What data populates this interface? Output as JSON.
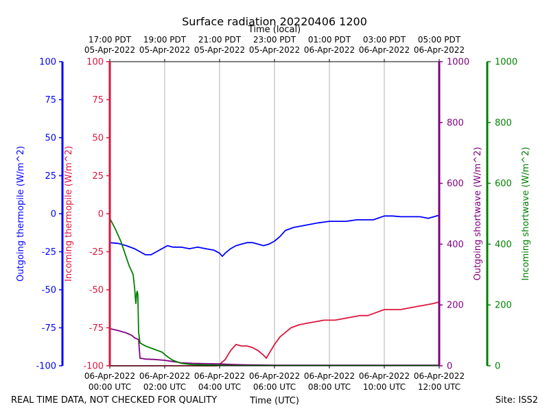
{
  "chart_data": {
    "type": "line",
    "title": "Surface radiation 20220406 1200",
    "top_axis_label": "Time (local)",
    "xlabel": "Time (UTC)",
    "footer_left": "REAL TIME DATA, NOT CHECKED FOR QUALITY",
    "footer_right": "Site: ISS2",
    "x_range_hours": [
      0,
      12
    ],
    "grid": "vertical",
    "bottom_ticks": [
      {
        "h": 0,
        "l1": "06-Apr-2022",
        "l2": "00:00 UTC"
      },
      {
        "h": 2,
        "l1": "06-Apr-2022",
        "l2": "02:00 UTC"
      },
      {
        "h": 4,
        "l1": "06-Apr-2022",
        "l2": "04:00 UTC"
      },
      {
        "h": 6,
        "l1": "06-Apr-2022",
        "l2": "06:00 UTC"
      },
      {
        "h": 8,
        "l1": "06-Apr-2022",
        "l2": "08:00 UTC"
      },
      {
        "h": 10,
        "l1": "06-Apr-2022",
        "l2": "10:00 UTC"
      },
      {
        "h": 12,
        "l1": "06-Apr-2022",
        "l2": "12:00 UTC"
      }
    ],
    "top_ticks": [
      {
        "h": 0,
        "l1": "17:00 PDT",
        "l2": "05-Apr-2022"
      },
      {
        "h": 2,
        "l1": "19:00 PDT",
        "l2": "05-Apr-2022"
      },
      {
        "h": 4,
        "l1": "21:00 PDT",
        "l2": "05-Apr-2022"
      },
      {
        "h": 6,
        "l1": "23:00 PDT",
        "l2": "05-Apr-2022"
      },
      {
        "h": 8,
        "l1": "01:00 PDT",
        "l2": "06-Apr-2022"
      },
      {
        "h": 10,
        "l1": "03:00 PDT",
        "l2": "06-Apr-2022"
      },
      {
        "h": 12,
        "l1": "05:00 PDT",
        "l2": "06-Apr-2022"
      }
    ],
    "axes": [
      {
        "id": "outgoing_thermopile",
        "label": "Outgoing thermopile (W/m^2)",
        "color": "#0000ff",
        "range": [
          -100,
          100
        ],
        "ticks": [
          100,
          75,
          50,
          25,
          0,
          -25,
          -50,
          -75,
          -100
        ]
      },
      {
        "id": "incoming_thermopile",
        "label": "Incoming thermopile (W/m^2)",
        "color": "#dc143c",
        "range": [
          -100,
          100
        ],
        "ticks": [
          100,
          75,
          50,
          25,
          0,
          -25,
          -50,
          -75,
          -100
        ]
      },
      {
        "id": "outgoing_shortwave",
        "label": "Outgoing shortwave (W/m^2)",
        "color": "#800080",
        "range": [
          0,
          1000
        ],
        "ticks": [
          1000,
          800,
          600,
          400,
          200,
          0
        ]
      },
      {
        "id": "incoming_shortwave",
        "label": "Incoming shortwave (W/m^2)",
        "color": "#008000",
        "range": [
          0,
          1000
        ],
        "ticks": [
          1000,
          800,
          600,
          400,
          200,
          0
        ]
      }
    ],
    "series": [
      {
        "name": "Outgoing thermopile",
        "axis": "outgoing_thermopile",
        "color": "#0000ff",
        "points": [
          [
            0,
            -19
          ],
          [
            0.3,
            -19.5
          ],
          [
            0.6,
            -21
          ],
          [
            0.9,
            -23
          ],
          [
            1.1,
            -25
          ],
          [
            1.3,
            -27
          ],
          [
            1.5,
            -27
          ],
          [
            1.7,
            -25
          ],
          [
            1.9,
            -23
          ],
          [
            2.1,
            -21
          ],
          [
            2.3,
            -22
          ],
          [
            2.6,
            -22
          ],
          [
            2.9,
            -23
          ],
          [
            3.2,
            -22
          ],
          [
            3.5,
            -23
          ],
          [
            3.8,
            -24
          ],
          [
            4.0,
            -26
          ],
          [
            4.1,
            -28
          ],
          [
            4.2,
            -26
          ],
          [
            4.4,
            -23
          ],
          [
            4.6,
            -21
          ],
          [
            4.8,
            -20
          ],
          [
            5.0,
            -19
          ],
          [
            5.2,
            -19
          ],
          [
            5.4,
            -20
          ],
          [
            5.6,
            -21
          ],
          [
            5.8,
            -20
          ],
          [
            6.0,
            -18
          ],
          [
            6.2,
            -15
          ],
          [
            6.4,
            -11
          ],
          [
            6.7,
            -9
          ],
          [
            7.0,
            -8
          ],
          [
            7.3,
            -7
          ],
          [
            7.6,
            -6
          ],
          [
            8.0,
            -5
          ],
          [
            8.3,
            -5
          ],
          [
            8.6,
            -5
          ],
          [
            9.0,
            -4
          ],
          [
            9.3,
            -4
          ],
          [
            9.6,
            -4
          ],
          [
            10.0,
            -1.5
          ],
          [
            10.3,
            -1.5
          ],
          [
            10.6,
            -2
          ],
          [
            11.0,
            -2
          ],
          [
            11.3,
            -2
          ],
          [
            11.6,
            -3
          ],
          [
            12.0,
            -1
          ]
        ]
      },
      {
        "name": "Incoming thermopile",
        "axis": "incoming_thermopile",
        "color": "#dc143c",
        "points": [
          [
            0,
            -100
          ],
          [
            3.9,
            -100
          ],
          [
            4.0,
            -99
          ],
          [
            4.2,
            -96
          ],
          [
            4.4,
            -90
          ],
          [
            4.6,
            -86
          ],
          [
            4.8,
            -87
          ],
          [
            5.0,
            -87
          ],
          [
            5.2,
            -88
          ],
          [
            5.4,
            -90
          ],
          [
            5.6,
            -93
          ],
          [
            5.7,
            -95
          ],
          [
            5.8,
            -92
          ],
          [
            6.0,
            -86
          ],
          [
            6.2,
            -81
          ],
          [
            6.4,
            -78
          ],
          [
            6.6,
            -75
          ],
          [
            6.9,
            -73
          ],
          [
            7.2,
            -72
          ],
          [
            7.5,
            -71
          ],
          [
            7.8,
            -70
          ],
          [
            8.2,
            -70
          ],
          [
            8.5,
            -69
          ],
          [
            8.8,
            -68
          ],
          [
            9.1,
            -67
          ],
          [
            9.4,
            -67
          ],
          [
            9.7,
            -65
          ],
          [
            10.0,
            -63
          ],
          [
            10.3,
            -63
          ],
          [
            10.6,
            -63
          ],
          [
            10.9,
            -62
          ],
          [
            11.2,
            -61
          ],
          [
            11.5,
            -60
          ],
          [
            11.8,
            -59
          ],
          [
            12.0,
            -58
          ]
        ]
      },
      {
        "name": "Outgoing shortwave",
        "axis": "outgoing_shortwave",
        "color": "#800080",
        "points": [
          [
            0,
            122
          ],
          [
            0.3,
            116
          ],
          [
            0.6,
            108
          ],
          [
            0.8,
            100
          ],
          [
            0.9,
            92
          ],
          [
            1.0,
            88
          ],
          [
            1.05,
            86
          ],
          [
            1.1,
            25
          ],
          [
            1.3,
            22
          ],
          [
            1.6,
            21
          ],
          [
            2.0,
            18
          ],
          [
            2.3,
            14
          ],
          [
            2.6,
            10
          ],
          [
            3.0,
            8
          ],
          [
            3.5,
            7
          ],
          [
            4.0,
            6
          ],
          [
            4.5,
            4
          ],
          [
            5.0,
            3
          ],
          [
            6.0,
            2
          ],
          [
            7.0,
            2
          ],
          [
            8.0,
            2
          ],
          [
            9.0,
            2
          ],
          [
            10.0,
            2
          ],
          [
            11.0,
            2
          ],
          [
            12.0,
            2
          ]
        ]
      },
      {
        "name": "Incoming shortwave",
        "axis": "incoming_shortwave",
        "color": "#008000",
        "points": [
          [
            0,
            485
          ],
          [
            0.2,
            450
          ],
          [
            0.4,
            410
          ],
          [
            0.55,
            370
          ],
          [
            0.7,
            330
          ],
          [
            0.85,
            300
          ],
          [
            0.9,
            260
          ],
          [
            0.93,
            225
          ],
          [
            0.95,
            205
          ],
          [
            0.98,
            240
          ],
          [
            1.0,
            245
          ],
          [
            1.02,
            235
          ],
          [
            1.05,
            110
          ],
          [
            1.1,
            75
          ],
          [
            1.3,
            65
          ],
          [
            1.6,
            55
          ],
          [
            1.9,
            45
          ],
          [
            2.1,
            30
          ],
          [
            2.3,
            18
          ],
          [
            2.6,
            8
          ],
          [
            3.0,
            4
          ],
          [
            3.5,
            3
          ],
          [
            4.0,
            2
          ],
          [
            4.5,
            1
          ],
          [
            12.0,
            1
          ]
        ]
      }
    ]
  }
}
